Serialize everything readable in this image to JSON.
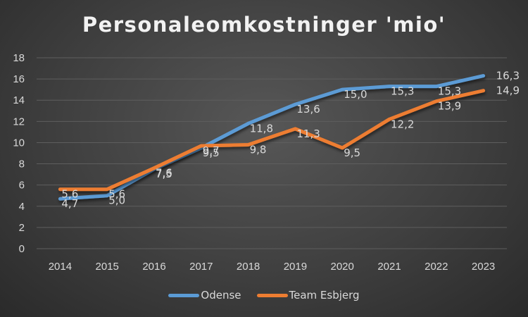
{
  "chart_data": {
    "type": "line",
    "title": "Personaleomkostninger 'mio'",
    "xlabel": "",
    "ylabel": "",
    "categories": [
      "2014",
      "2015",
      "2016",
      "2017",
      "2018",
      "2019",
      "2020",
      "2021",
      "2022",
      "2023"
    ],
    "ylim": [
      0,
      18
    ],
    "yticks": [
      "0",
      "2",
      "4",
      "6",
      "8",
      "10",
      "12",
      "14",
      "16",
      "18"
    ],
    "grid": true,
    "legend_position": "bottom",
    "series": [
      {
        "name": "Odense",
        "color": "#5b9bd5",
        "values": [
          4.7,
          5.0,
          7.5,
          9.5,
          11.8,
          13.6,
          15.0,
          15.3,
          15.3,
          16.3
        ],
        "labels": [
          "4,7",
          "5,0",
          "7,5",
          "9,5",
          "11,8",
          "13,6",
          "15,0",
          "15,3",
          "15,3",
          "16,3"
        ]
      },
      {
        "name": "Team Esbjerg",
        "color": "#ed7d31",
        "values": [
          5.6,
          5.6,
          7.6,
          9.7,
          9.8,
          11.3,
          9.5,
          12.2,
          13.9,
          14.9
        ],
        "labels": [
          "5,6",
          "5,6",
          "7,6",
          "9,7",
          "9,8",
          "11,3",
          "9,5",
          "12,2",
          "13,9",
          "14,9"
        ]
      }
    ]
  }
}
